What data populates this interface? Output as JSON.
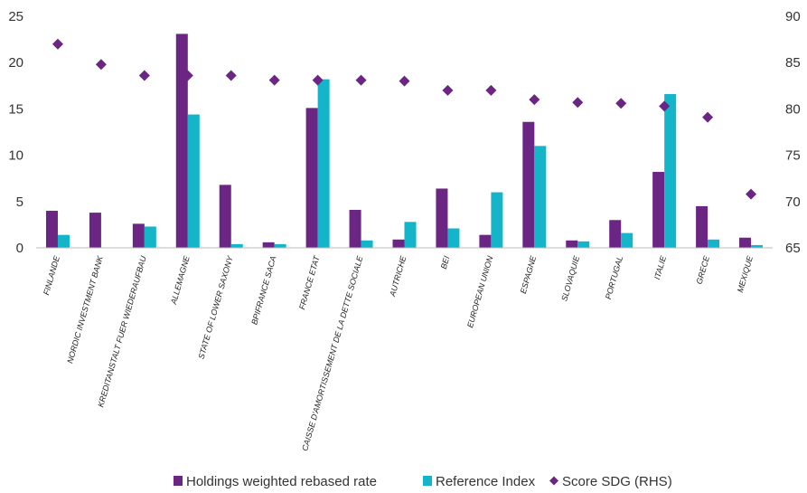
{
  "chart_data": {
    "type": "bar",
    "categories": [
      "FINLANDE",
      "NORDIC INVESTMENT BANK",
      "KREDITANSTALT FUER WIEDERAUFBAU",
      "ALLEMAGNE",
      "STATE OF LOWER SAXONY",
      "BPIFRANCE SACA",
      "FRANCE ETAT",
      "CAISSE D'AMORTISSEMENT DE LA DETTE SOCIALE",
      "AUTRICHE",
      "BEI",
      "EUROPEAN UNION",
      "ESPAGNE",
      "SLOVAQUIE",
      "PORTUGAL",
      "ITALIE",
      "GRECE",
      "MEXIQUE"
    ],
    "series": [
      {
        "name": "Holdings weighted rebased rate",
        "type": "bar",
        "axis": "left",
        "color": "#6b2582",
        "values": [
          4.0,
          3.8,
          2.6,
          23.1,
          6.8,
          0.6,
          15.1,
          4.1,
          0.9,
          6.4,
          1.4,
          13.6,
          0.8,
          3.0,
          8.2,
          4.5,
          1.1
        ]
      },
      {
        "name": "Reference Index",
        "type": "bar",
        "axis": "left",
        "color": "#15b5c9",
        "values": [
          1.4,
          0.0,
          2.3,
          14.4,
          0.4,
          0.4,
          18.2,
          0.8,
          2.8,
          2.1,
          6.0,
          11.0,
          0.7,
          1.6,
          16.6,
          0.9,
          0.3
        ]
      },
      {
        "name": "Score SDG (RHS)",
        "type": "scatter",
        "axis": "right",
        "color": "#6b2582",
        "values": [
          87.0,
          84.8,
          83.6,
          83.6,
          83.6,
          83.1,
          83.1,
          83.1,
          83.0,
          82.0,
          82.0,
          81.0,
          80.7,
          80.6,
          80.3,
          79.1,
          70.8
        ]
      }
    ],
    "ylim_left": [
      0,
      25
    ],
    "yticks_left": [
      "0",
      "5",
      "10",
      "15",
      "20",
      "25"
    ],
    "ylim_right": [
      65,
      90
    ],
    "yticks_right": [
      "65",
      "70",
      "75",
      "80",
      "85",
      "90"
    ],
    "grid": false,
    "legend": "bottom",
    "legend_items": [
      "Holdings weighted rebased rate",
      "Reference Index",
      "Score SDG (RHS)"
    ]
  }
}
